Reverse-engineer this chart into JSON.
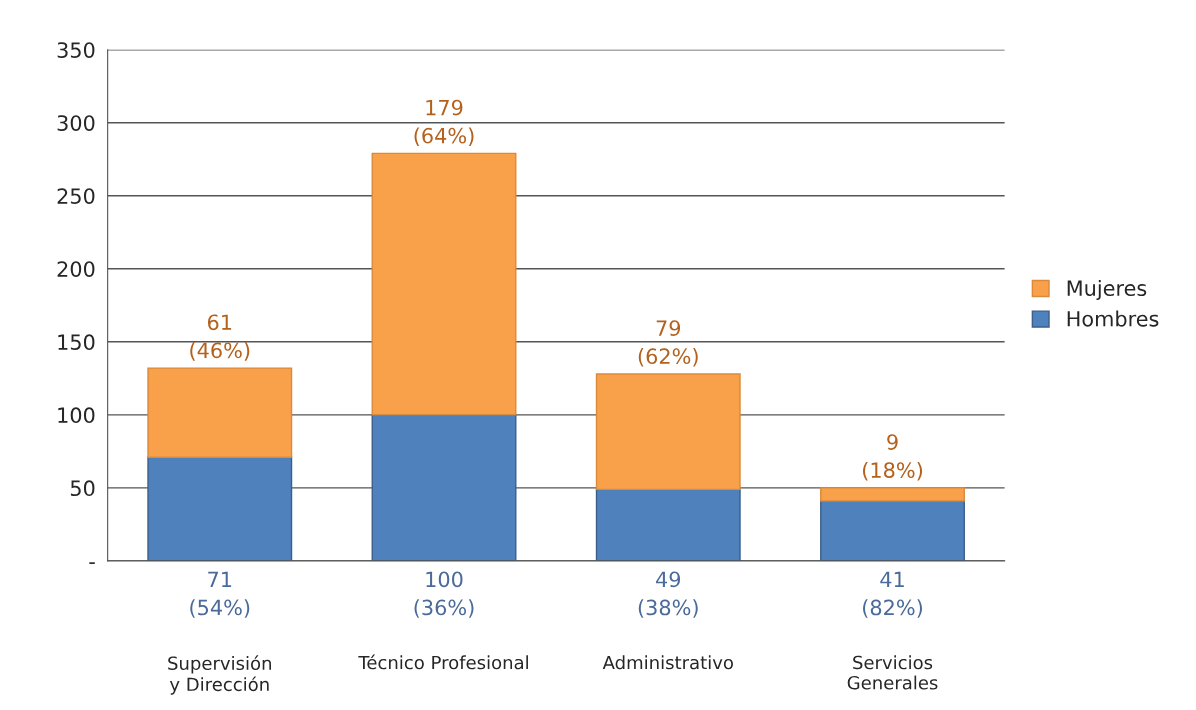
{
  "chart_data": {
    "type": "bar",
    "stacked": true,
    "categories": [
      "Supervisión\ny Dirección",
      "Técnico Profesional",
      "Administrativo",
      "Servicios\nGenerales"
    ],
    "series": [
      {
        "name": "Hombres",
        "color": "#4f81bd",
        "values": [
          71,
          100,
          49,
          41
        ],
        "value_labels": [
          "71\n(54%)",
          "100\n(36%)",
          "49\n(38%)",
          "41\n(82%)"
        ]
      },
      {
        "name": "Mujeres",
        "color": "#f9a04a",
        "values": [
          61,
          179,
          79,
          9
        ],
        "value_labels": [
          "61\n(46%)",
          "179\n(64%)",
          "79\n(62%)",
          "9\n(18%)"
        ]
      }
    ],
    "ylim": [
      0,
      350
    ],
    "yticks": [
      {
        "value": 0,
        "label": "-"
      },
      50,
      100,
      150,
      200,
      250,
      300,
      350
    ],
    "grid": "y",
    "legend": "right"
  }
}
